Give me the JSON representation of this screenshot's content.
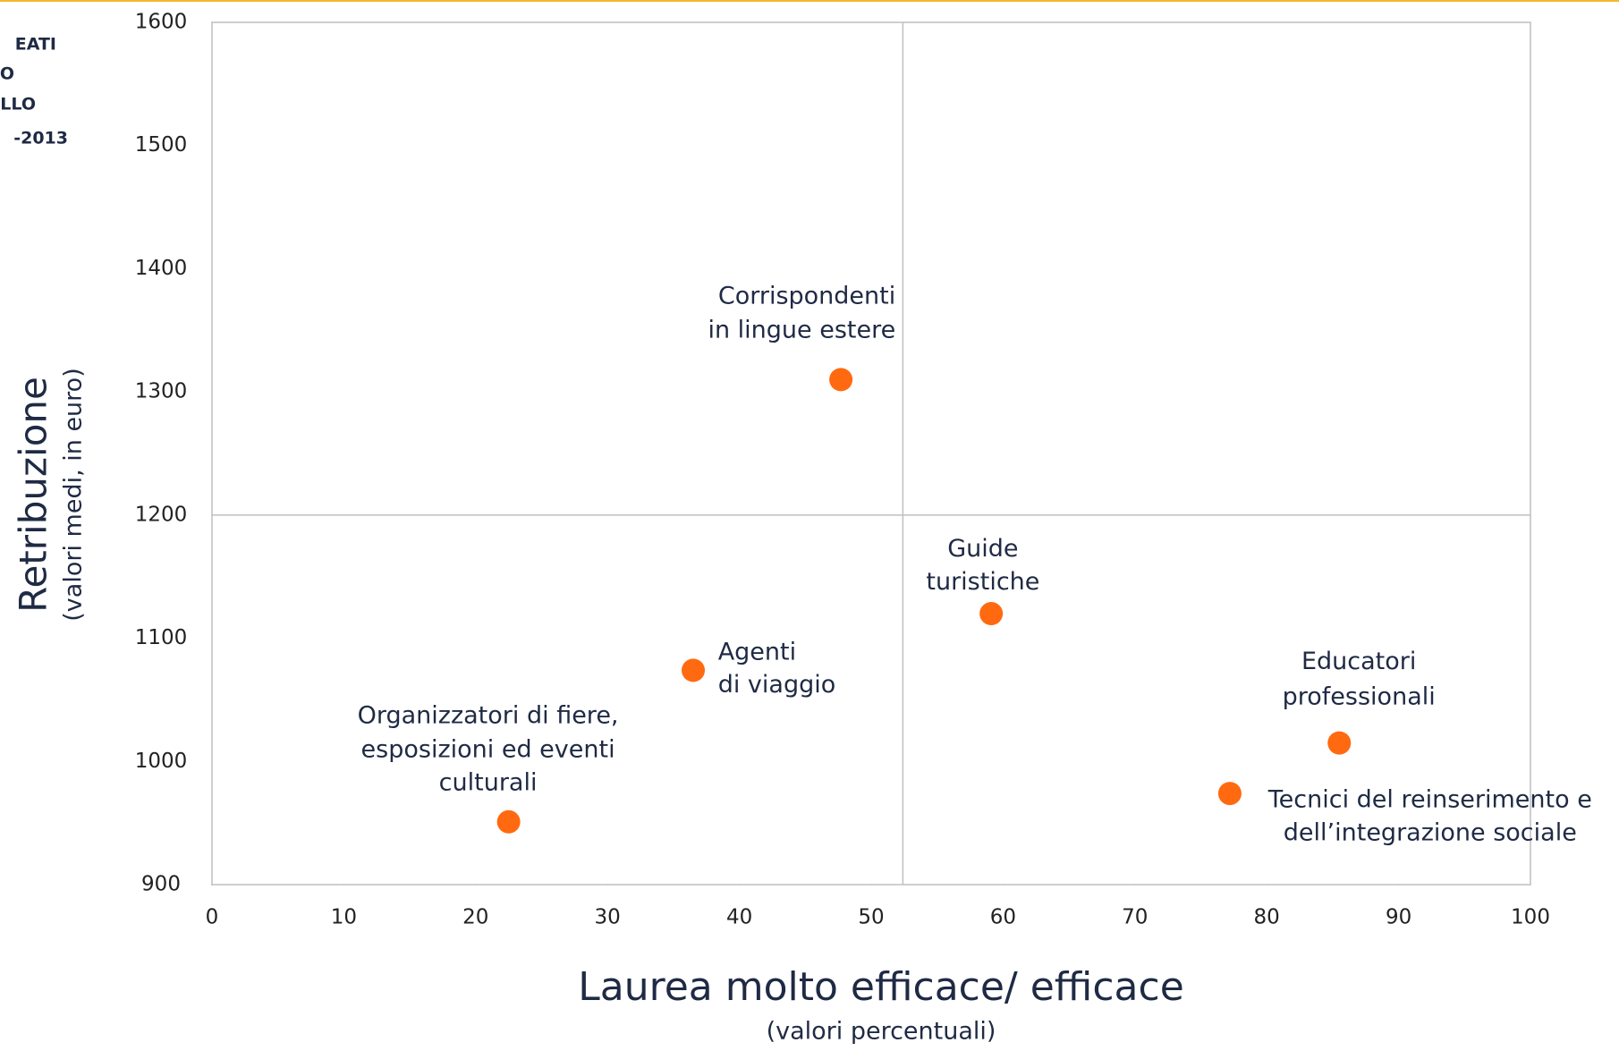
{
  "chart_data": {
    "type": "scatter",
    "side_text": [
      "EATI",
      "O",
      "LLO",
      "-2013"
    ],
    "x_label": "Laurea molto efficace/ efficace",
    "x_sublabel": "(valori percentuali)",
    "y_label": "Retribuzione",
    "y_sublabel": "(valori medi, in euro)",
    "xlim": [
      0,
      100
    ],
    "xticks": [
      0,
      10,
      20,
      30,
      40,
      50,
      60,
      70,
      80,
      90,
      100
    ],
    "ylim": [
      900,
      1600
    ],
    "yticks": [
      900,
      1000,
      1100,
      1200,
      1300,
      1400,
      1500,
      1600
    ],
    "reference_lines": {
      "x": 52.4,
      "y": 1200
    },
    "color": "#ff6a10",
    "points": [
      {
        "label": [
          "Corrispondenti",
          "in lingue estere"
        ],
        "x": 47.7,
        "y": 1310
      },
      {
        "label": [
          "Guide",
          "turistiche"
        ],
        "x": 59.1,
        "y": 1120
      },
      {
        "label": [
          "Agenti",
          "di viaggio"
        ],
        "x": 36.5,
        "y": 1074
      },
      {
        "label": [
          "Organizzatori di fiere,",
          "esposizioni ed eventi",
          "culturali"
        ],
        "x": 22.5,
        "y": 951
      },
      {
        "label": [
          "Educatori",
          "professionali"
        ],
        "x": 85.5,
        "y": 1015
      },
      {
        "label": [
          "Tecnici del reinserimento e",
          "dell’integrazione sociale"
        ],
        "x": 77.2,
        "y": 974
      }
    ]
  }
}
